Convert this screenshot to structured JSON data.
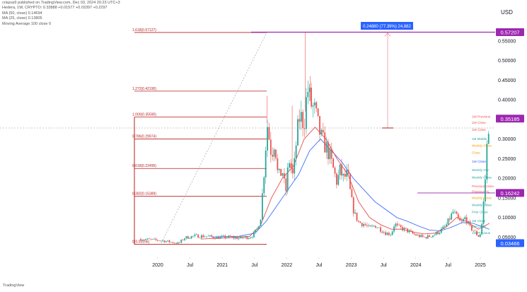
{
  "header": {
    "publisher": "crispus9 published on TradingView.com, Dec 03, 2024 20:23 UTC+3",
    "symbol_line": "Hedera, 1W, CRYPTO: 0.33888  +0.01577  +0.03397  +0.2297",
    "ma1": "MA (50, close)  0.14694",
    "ma2": "MA (25, close)  0.13805",
    "ma3": "Moving Average 100 close 0"
  },
  "currency": "USD",
  "watermark": "TradingView",
  "colors": {
    "up": "#26a69a",
    "down": "#ef5350",
    "ma_blue": "#2962ff",
    "ma_red": "#e53935",
    "fib_line": "#b71c1c",
    "purple": "#9c27b0",
    "measure_box": "#2962ff"
  },
  "measure_label": "0.24880 (77.39%) 24,882",
  "chart_data": {
    "type": "candlestick",
    "x_tick_labels": [
      "2020",
      "Jul",
      "2021",
      "Jul",
      "2022",
      "Jul",
      "2023",
      "Jul",
      "2024",
      "Jul",
      "2025"
    ],
    "y_tick_labels": [
      "0.55000",
      "0.50000",
      "0.45000",
      "0.40000",
      "0.35000",
      "0.30000",
      "0.25000",
      "0.20000",
      "0.15000",
      "0.10000",
      "0.05000"
    ],
    "ylim": [
      0.02,
      0.6
    ],
    "price_badges": [
      {
        "value": "0.57207",
        "price": 0.57207,
        "color": "#9c27b0"
      },
      {
        "value": "0.35185",
        "price": 0.35185,
        "color": "#9c27b0"
      },
      {
        "value": "0.16242",
        "price": 0.16242,
        "color": "#9c27b0"
      },
      {
        "value": "0.03466",
        "price": 0.03466,
        "color": "#2962ff"
      }
    ],
    "fib_levels": [
      {
        "label": "1.618(0.57127)",
        "price": 0.57127
      },
      {
        "label": "1.272(0.42190)",
        "price": 0.4219
      },
      {
        "label": "1.000(0.35590)",
        "price": 0.3559
      },
      {
        "label": "0.786(0.29974)",
        "price": 0.29974
      },
      {
        "label": "0.618(0.22495)",
        "price": 0.22495
      },
      {
        "label": "0.382(0.15389)",
        "price": 0.15389
      },
      {
        "label": "0(0.03156)",
        "price": 0.03156
      }
    ],
    "right_labels": [
      {
        "text": "1W Previous",
        "price": 0.3575,
        "color": "#ef5350"
      },
      {
        "text": "1W Close",
        "price": 0.3423,
        "color": "#ef5350"
      },
      {
        "text": "1W Close",
        "price": 0.3244,
        "color": "#ef5350"
      },
      {
        "text": "1M Middle",
        "price": 0.3014,
        "color": "#26a69a"
      },
      {
        "text": "Weekly Close",
        "price": 0.2841,
        "color": "#ff9800"
      },
      {
        "text": "Close",
        "price": 0.2662,
        "color": "#ff9800"
      },
      {
        "text": "1W Close",
        "price": 0.2434,
        "color": "#2962ff"
      },
      {
        "text": "Weekly VW",
        "price": 0.2214,
        "color": "#26a69a"
      },
      {
        "text": "Weekly Close",
        "price": 0.2031,
        "color": "#26a69a"
      },
      {
        "text": "Previous Close",
        "price": 0.1801,
        "color": "#ef5350"
      },
      {
        "text": "Previous HL",
        "price": 0.1664,
        "color": "#ef5350"
      },
      {
        "text": "Weekly Close",
        "price": 0.1507,
        "color": "#ff9800"
      },
      {
        "text": "Weekly Close",
        "price": 0.1328,
        "color": "#26a69a"
      },
      {
        "text": "Prior Close",
        "price": 0.1148,
        "color": "#26a69a"
      },
      {
        "text": "1M Close",
        "price": 0.0925,
        "color": "#26a69a"
      },
      {
        "text": "1W Close",
        "price": 0.0777,
        "color": "#26a69a"
      },
      {
        "text": "1W Previous",
        "price": 0.0618,
        "color": "#26a69a"
      }
    ],
    "price_path": [
      [
        0.0,
        0.045
      ],
      [
        2.0,
        0.041
      ],
      [
        3.0,
        0.036
      ],
      [
        3.5,
        0.034
      ],
      [
        4.0,
        0.048
      ],
      [
        5.0,
        0.053
      ],
      [
        6.0,
        0.052
      ],
      [
        7.0,
        0.049
      ],
      [
        8.0,
        0.05
      ],
      [
        9.0,
        0.047
      ],
      [
        10.0,
        0.05
      ],
      [
        10.3,
        0.055
      ],
      [
        10.7,
        0.07
      ],
      [
        11.0,
        0.1
      ],
      [
        11.3,
        0.21
      ],
      [
        11.6,
        0.34
      ],
      [
        12.0,
        0.26
      ],
      [
        12.3,
        0.3
      ],
      [
        12.6,
        0.2
      ],
      [
        13.0,
        0.22
      ],
      [
        13.3,
        0.16
      ],
      [
        13.6,
        0.25
      ],
      [
        14.0,
        0.2
      ],
      [
        14.3,
        0.3
      ],
      [
        14.6,
        0.36
      ],
      [
        15.0,
        0.34
      ],
      [
        15.3,
        0.43
      ],
      [
        15.6,
        0.39
      ],
      [
        16.0,
        0.37
      ],
      [
        16.3,
        0.33
      ],
      [
        16.6,
        0.3
      ],
      [
        17.0,
        0.28
      ],
      [
        17.3,
        0.26
      ],
      [
        17.6,
        0.23
      ],
      [
        18.0,
        0.19
      ],
      [
        18.3,
        0.22
      ],
      [
        18.6,
        0.2
      ],
      [
        19.0,
        0.21
      ],
      [
        19.3,
        0.15
      ],
      [
        19.6,
        0.11
      ],
      [
        20.0,
        0.088
      ],
      [
        20.5,
        0.083
      ],
      [
        21.0,
        0.072
      ],
      [
        21.5,
        0.08
      ],
      [
        22.0,
        0.07
      ],
      [
        22.5,
        0.06
      ],
      [
        23.0,
        0.058
      ],
      [
        23.3,
        0.085
      ],
      [
        23.6,
        0.075
      ],
      [
        24.0,
        0.072
      ],
      [
        24.5,
        0.066
      ],
      [
        25.0,
        0.058
      ],
      [
        25.5,
        0.053
      ],
      [
        26.0,
        0.049
      ],
      [
        26.5,
        0.052
      ],
      [
        27.0,
        0.057
      ],
      [
        27.5,
        0.066
      ],
      [
        28.0,
        0.078
      ],
      [
        28.4,
        0.1
      ],
      [
        28.7,
        0.115
      ],
      [
        29.0,
        0.1
      ],
      [
        29.4,
        0.085
      ],
      [
        29.8,
        0.1
      ],
      [
        30.2,
        0.075
      ],
      [
        30.6,
        0.065
      ],
      [
        30.9,
        0.055
      ],
      [
        31.1,
        0.05
      ],
      [
        31.3,
        0.08
      ],
      [
        31.5,
        0.15
      ],
      [
        31.7,
        0.23
      ],
      [
        31.85,
        0.33
      ],
      [
        32.0,
        0.35
      ]
    ],
    "ma_blue": [
      [
        6.5,
        0.05
      ],
      [
        9.0,
        0.052
      ],
      [
        10.5,
        0.06
      ],
      [
        11.5,
        0.09
      ],
      [
        12.5,
        0.13
      ],
      [
        13.5,
        0.17
      ],
      [
        14.5,
        0.21
      ],
      [
        15.5,
        0.27
      ],
      [
        16.5,
        0.3
      ],
      [
        17.5,
        0.27
      ],
      [
        18.5,
        0.24
      ],
      [
        19.5,
        0.2
      ],
      [
        20.5,
        0.17
      ],
      [
        21.5,
        0.14
      ],
      [
        22.5,
        0.12
      ],
      [
        23.5,
        0.1
      ],
      [
        24.5,
        0.09
      ],
      [
        25.5,
        0.078
      ],
      [
        26.5,
        0.068
      ],
      [
        27.5,
        0.066
      ],
      [
        28.5,
        0.075
      ],
      [
        29.5,
        0.087
      ],
      [
        30.5,
        0.085
      ],
      [
        31.5,
        0.075
      ],
      [
        32.0,
        0.07
      ]
    ],
    "ma_red": [
      [
        5.5,
        0.045
      ],
      [
        8.0,
        0.048
      ],
      [
        10.0,
        0.052
      ],
      [
        11.0,
        0.08
      ],
      [
        12.0,
        0.15
      ],
      [
        13.0,
        0.2
      ],
      [
        14.0,
        0.23
      ],
      [
        15.0,
        0.3
      ],
      [
        16.0,
        0.33
      ],
      [
        17.0,
        0.3
      ],
      [
        18.0,
        0.25
      ],
      [
        19.0,
        0.21
      ],
      [
        20.0,
        0.14
      ],
      [
        21.0,
        0.1
      ],
      [
        22.0,
        0.082
      ],
      [
        23.0,
        0.07
      ],
      [
        24.0,
        0.07
      ],
      [
        25.0,
        0.063
      ],
      [
        26.0,
        0.058
      ],
      [
        27.0,
        0.06
      ],
      [
        28.0,
        0.075
      ],
      [
        29.0,
        0.1
      ],
      [
        30.0,
        0.088
      ],
      [
        31.0,
        0.07
      ],
      [
        32.0,
        0.085
      ]
    ]
  }
}
